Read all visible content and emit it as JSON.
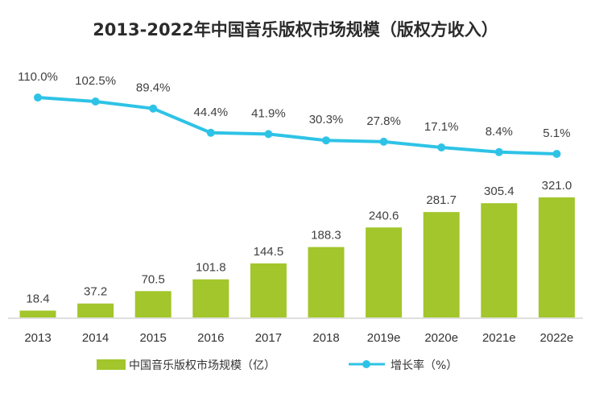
{
  "chart_data": {
    "type": "bar",
    "title": "2013-2022年中国音乐版权市场规模（版权方收入）",
    "categories": [
      "2013",
      "2014",
      "2015",
      "2016",
      "2017",
      "2018",
      "2019e",
      "2020e",
      "2021e",
      "2022e"
    ],
    "series": [
      {
        "name": "中国音乐版权市场规模（亿）",
        "kind": "bar",
        "values": [
          18.4,
          37.2,
          70.5,
          101.8,
          144.5,
          188.3,
          240.6,
          281.7,
          305.4,
          321.0
        ],
        "labels": [
          "18.4",
          "37.2",
          "70.5",
          "101.8",
          "144.5",
          "188.3",
          "240.6",
          "281.7",
          "305.4",
          "321.0"
        ],
        "color": "#a2c62b"
      },
      {
        "name": "增长率（%）",
        "kind": "line",
        "values": [
          110.0,
          102.5,
          89.4,
          44.4,
          41.9,
          30.3,
          27.8,
          17.1,
          8.4,
          5.1
        ],
        "labels": [
          "110.0%",
          "102.5%",
          "89.4%",
          "44.4%",
          "41.9%",
          "30.3%",
          "27.8%",
          "17.1%",
          "8.4%",
          "5.1%"
        ],
        "color": "#2ec3e6"
      }
    ],
    "grid": false,
    "legend": "bottom"
  }
}
